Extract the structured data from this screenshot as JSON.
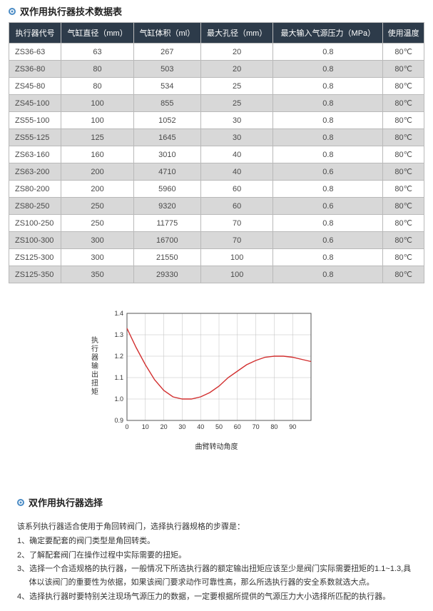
{
  "table_section": {
    "title": "双作用执行器技术数据表",
    "columns": [
      "执行器代号",
      "气缸直径（mm）",
      "气缸体积（ml）",
      "最大孔径（mm）",
      "最大输入气源压力（MPa）",
      "使用温度"
    ],
    "rows": [
      [
        "ZS36-63",
        "63",
        "267",
        "20",
        "0.8",
        "80℃"
      ],
      [
        "ZS36-80",
        "80",
        "503",
        "20",
        "0.8",
        "80℃"
      ],
      [
        "ZS45-80",
        "80",
        "534",
        "25",
        "0.8",
        "80℃"
      ],
      [
        "ZS45-100",
        "100",
        "855",
        "25",
        "0.8",
        "80℃"
      ],
      [
        "ZS55-100",
        "100",
        "1052",
        "30",
        "0.8",
        "80℃"
      ],
      [
        "ZS55-125",
        "125",
        "1645",
        "30",
        "0.8",
        "80℃"
      ],
      [
        "ZS63-160",
        "160",
        "3010",
        "40",
        "0.8",
        "80℃"
      ],
      [
        "ZS63-200",
        "200",
        "4710",
        "40",
        "0.6",
        "80℃"
      ],
      [
        "ZS80-200",
        "200",
        "5960",
        "60",
        "0.8",
        "80℃"
      ],
      [
        "ZS80-250",
        "250",
        "9320",
        "60",
        "0.6",
        "80℃"
      ],
      [
        "ZS100-250",
        "250",
        "11775",
        "70",
        "0.8",
        "80℃"
      ],
      [
        "ZS100-300",
        "300",
        "16700",
        "70",
        "0.6",
        "80℃"
      ],
      [
        "ZS125-300",
        "300",
        "21550",
        "100",
        "0.8",
        "80℃"
      ],
      [
        "ZS125-350",
        "350",
        "29330",
        "100",
        "0.8",
        "80℃"
      ]
    ],
    "cell_fontsize": 11,
    "header_bg": "#2d3b4a",
    "header_fg": "#ffffff",
    "row_even_bg": "#d8d8d8",
    "row_odd_bg": "#ffffff",
    "border_color": "#b9b9b9"
  },
  "chart": {
    "type": "line",
    "ylabel": "执行器输出扭矩",
    "xlabel": "曲臂转动角度",
    "xlim": [
      0,
      100
    ],
    "ylim": [
      0.9,
      1.4
    ],
    "xtick_step": 10,
    "ytick_step": 0.1,
    "xticks": [
      "0",
      "10",
      "20",
      "30",
      "40",
      "50",
      "60",
      "70",
      "80",
      "90"
    ],
    "yticks": [
      "0.9",
      "1.0",
      "1.1",
      "1.2",
      "1.3",
      "1.4"
    ],
    "line_color": "#d22f2f",
    "line_width": 1.4,
    "axis_color": "#555555",
    "grid_color": "#bfbfbf",
    "background_color": "#ffffff",
    "label_fontsize": 10,
    "tick_fontsize": 9,
    "points": [
      [
        0,
        1.33
      ],
      [
        5,
        1.24
      ],
      [
        10,
        1.16
      ],
      [
        15,
        1.09
      ],
      [
        20,
        1.04
      ],
      [
        25,
        1.01
      ],
      [
        30,
        1.0
      ],
      [
        35,
        1.0
      ],
      [
        40,
        1.01
      ],
      [
        45,
        1.03
      ],
      [
        50,
        1.06
      ],
      [
        55,
        1.1
      ],
      [
        60,
        1.13
      ],
      [
        65,
        1.16
      ],
      [
        70,
        1.18
      ],
      [
        75,
        1.195
      ],
      [
        80,
        1.2
      ],
      [
        85,
        1.2
      ],
      [
        90,
        1.195
      ],
      [
        95,
        1.185
      ],
      [
        100,
        1.175
      ]
    ]
  },
  "selection_section": {
    "title": "双作用执行器选择",
    "intro": "该系列执行器适合使用于角回转阀门，选择执行器规格的步骤是：",
    "items": [
      "1、确定要配套的阀门类型是角回转类。",
      "2、了解配套阀门在操作过程中实际需要的扭矩。",
      "3、选择一个合适规格的执行器，一般情况下所选执行器的额定输出扭矩应该至少是阀门实际需要扭矩的1.1~1.3,具体以该阀门的重要性为依据，如果该阀门要求动作可靠性高，那么所选执行器的安全系数就选大点。",
      "4、选择执行器时要特别关注现场气源压力的数据，一定要根据所提供的气源压力大小选择所匹配的执行器。"
    ]
  }
}
